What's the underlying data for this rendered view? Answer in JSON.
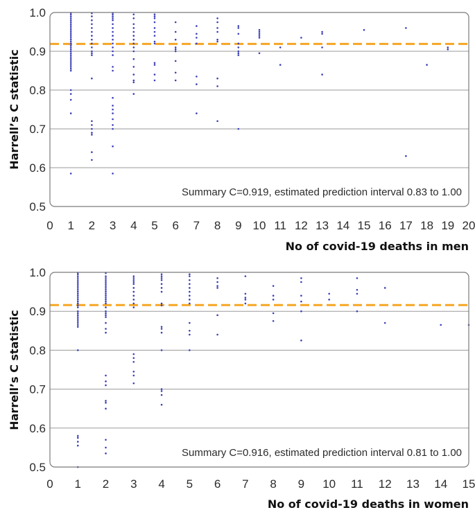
{
  "colors": {
    "points": "#3b3fb6",
    "summary_line": "#f5a623",
    "grid": "#9a9a9a",
    "frame": "#7a7a7a"
  },
  "chart_data": [
    {
      "type": "scatter",
      "xlabel": "No of covid-19 deaths in men",
      "ylabel": "Harrell’s C statistic",
      "xlim": [
        0,
        20
      ],
      "ylim": [
        0.5,
        1.0
      ],
      "x_ticks": [
        "0",
        "1",
        "2",
        "3",
        "4",
        "5",
        "6",
        "7",
        "8",
        "9",
        "10",
        "11",
        "12",
        "13",
        "14",
        "15",
        "16",
        "17",
        "18",
        "19",
        "20"
      ],
      "y_ticks": [
        "0.5",
        "0.6",
        "0.7",
        "0.8",
        "0.9",
        "1.0"
      ],
      "grid": "horizontal",
      "summary_c": 0.919,
      "annotation": "Summary C=0.919, estimated prediction interval 0.83 to 1.00",
      "points": [
        [
          1,
          0.999
        ],
        [
          1,
          0.995
        ],
        [
          1,
          0.99
        ],
        [
          1,
          0.985
        ],
        [
          1,
          0.98
        ],
        [
          1,
          0.975
        ],
        [
          1,
          0.97
        ],
        [
          1,
          0.965
        ],
        [
          1,
          0.96
        ],
        [
          1,
          0.955
        ],
        [
          1,
          0.95
        ],
        [
          1,
          0.945
        ],
        [
          1,
          0.94
        ],
        [
          1,
          0.935
        ],
        [
          1,
          0.93
        ],
        [
          1,
          0.925
        ],
        [
          1,
          0.92
        ],
        [
          1,
          0.915
        ],
        [
          1,
          0.91
        ],
        [
          1,
          0.905
        ],
        [
          1,
          0.9
        ],
        [
          1,
          0.895
        ],
        [
          1,
          0.89
        ],
        [
          1,
          0.885
        ],
        [
          1,
          0.88
        ],
        [
          1,
          0.875
        ],
        [
          1,
          0.87
        ],
        [
          1,
          0.865
        ],
        [
          1,
          0.86
        ],
        [
          1,
          0.855
        ],
        [
          1,
          0.85
        ],
        [
          1,
          0.8
        ],
        [
          1,
          0.79
        ],
        [
          1,
          0.775
        ],
        [
          1,
          0.74
        ],
        [
          1,
          0.585
        ],
        [
          2,
          0.998
        ],
        [
          2,
          0.99
        ],
        [
          2,
          0.98
        ],
        [
          2,
          0.97
        ],
        [
          2,
          0.96
        ],
        [
          2,
          0.95
        ],
        [
          2,
          0.94
        ],
        [
          2,
          0.93
        ],
        [
          2,
          0.92
        ],
        [
          2,
          0.91
        ],
        [
          2,
          0.9
        ],
        [
          2,
          0.895
        ],
        [
          2,
          0.89
        ],
        [
          2,
          0.83
        ],
        [
          2,
          0.72
        ],
        [
          2,
          0.71
        ],
        [
          2,
          0.7
        ],
        [
          2,
          0.69
        ],
        [
          2,
          0.685
        ],
        [
          2,
          0.64
        ],
        [
          2,
          0.62
        ],
        [
          3,
          0.999
        ],
        [
          3,
          0.995
        ],
        [
          3,
          0.99
        ],
        [
          3,
          0.985
        ],
        [
          3,
          0.98
        ],
        [
          3,
          0.97
        ],
        [
          3,
          0.96
        ],
        [
          3,
          0.95
        ],
        [
          3,
          0.94
        ],
        [
          3,
          0.93
        ],
        [
          3,
          0.92
        ],
        [
          3,
          0.91
        ],
        [
          3,
          0.9
        ],
        [
          3,
          0.89
        ],
        [
          3,
          0.86
        ],
        [
          3,
          0.85
        ],
        [
          3,
          0.78
        ],
        [
          3,
          0.76
        ],
        [
          3,
          0.75
        ],
        [
          3,
          0.74
        ],
        [
          3,
          0.725
        ],
        [
          3,
          0.71
        ],
        [
          3,
          0.7
        ],
        [
          3,
          0.655
        ],
        [
          3,
          0.585
        ],
        [
          4,
          0.995
        ],
        [
          4,
          0.985
        ],
        [
          4,
          0.97
        ],
        [
          4,
          0.96
        ],
        [
          4,
          0.95
        ],
        [
          4,
          0.94
        ],
        [
          4,
          0.93
        ],
        [
          4,
          0.92
        ],
        [
          4,
          0.91
        ],
        [
          4,
          0.9
        ],
        [
          4,
          0.88
        ],
        [
          4,
          0.86
        ],
        [
          4,
          0.84
        ],
        [
          4,
          0.825
        ],
        [
          4,
          0.82
        ],
        [
          4,
          0.79
        ],
        [
          5,
          0.995
        ],
        [
          5,
          0.99
        ],
        [
          5,
          0.985
        ],
        [
          5,
          0.975
        ],
        [
          5,
          0.96
        ],
        [
          5,
          0.95
        ],
        [
          5,
          0.94
        ],
        [
          5,
          0.925
        ],
        [
          5,
          0.92
        ],
        [
          5,
          0.87
        ],
        [
          5,
          0.865
        ],
        [
          5,
          0.84
        ],
        [
          5,
          0.825
        ],
        [
          6,
          0.975
        ],
        [
          6,
          0.95
        ],
        [
          6,
          0.93
        ],
        [
          6,
          0.91
        ],
        [
          6,
          0.905
        ],
        [
          6,
          0.9
        ],
        [
          6,
          0.875
        ],
        [
          6,
          0.845
        ],
        [
          6,
          0.825
        ],
        [
          7,
          0.965
        ],
        [
          7,
          0.945
        ],
        [
          7,
          0.935
        ],
        [
          7,
          0.92
        ],
        [
          7,
          0.835
        ],
        [
          7,
          0.815
        ],
        [
          7,
          0.74
        ],
        [
          8,
          0.985
        ],
        [
          8,
          0.975
        ],
        [
          8,
          0.96
        ],
        [
          8,
          0.95
        ],
        [
          8,
          0.93
        ],
        [
          8,
          0.925
        ],
        [
          8,
          0.83
        ],
        [
          8,
          0.81
        ],
        [
          8,
          0.72
        ],
        [
          9,
          0.965
        ],
        [
          9,
          0.96
        ],
        [
          9,
          0.945
        ],
        [
          9,
          0.92
        ],
        [
          9,
          0.91
        ],
        [
          9,
          0.9
        ],
        [
          9,
          0.895
        ],
        [
          9,
          0.89
        ],
        [
          9,
          0.7
        ],
        [
          10,
          0.955
        ],
        [
          10,
          0.95
        ],
        [
          10,
          0.945
        ],
        [
          10,
          0.94
        ],
        [
          10,
          0.935
        ],
        [
          10,
          0.895
        ],
        [
          11,
          0.91
        ],
        [
          11,
          0.865
        ],
        [
          12,
          0.935
        ],
        [
          13,
          0.95
        ],
        [
          13,
          0.945
        ],
        [
          13,
          0.91
        ],
        [
          13,
          0.84
        ],
        [
          15,
          0.955
        ],
        [
          17,
          0.96
        ],
        [
          17,
          0.63
        ],
        [
          18,
          0.865
        ],
        [
          19,
          0.91
        ],
        [
          19,
          0.905
        ]
      ]
    },
    {
      "type": "scatter",
      "xlabel": "No of covid-19 deaths in women",
      "ylabel": "Harrell’s C statistic",
      "xlim": [
        0,
        15
      ],
      "ylim": [
        0.5,
        1.0
      ],
      "x_ticks": [
        "0",
        "1",
        "2",
        "3",
        "4",
        "5",
        "6",
        "7",
        "8",
        "9",
        "10",
        "11",
        "12",
        "13",
        "14",
        "15"
      ],
      "y_ticks": [
        "0.5",
        "0.6",
        "0.7",
        "0.8",
        "0.9",
        "1.0"
      ],
      "grid": "horizontal",
      "summary_c": 0.916,
      "annotation": "Summary C=0.916, estimated prediction interval 0.81 to 1.00",
      "points": [
        [
          1,
          0.999
        ],
        [
          1,
          0.995
        ],
        [
          1,
          0.99
        ],
        [
          1,
          0.985
        ],
        [
          1,
          0.98
        ],
        [
          1,
          0.975
        ],
        [
          1,
          0.97
        ],
        [
          1,
          0.965
        ],
        [
          1,
          0.96
        ],
        [
          1,
          0.955
        ],
        [
          1,
          0.95
        ],
        [
          1,
          0.945
        ],
        [
          1,
          0.94
        ],
        [
          1,
          0.935
        ],
        [
          1,
          0.93
        ],
        [
          1,
          0.925
        ],
        [
          1,
          0.92
        ],
        [
          1,
          0.915
        ],
        [
          1,
          0.91
        ],
        [
          1,
          0.9
        ],
        [
          1,
          0.895
        ],
        [
          1,
          0.89
        ],
        [
          1,
          0.885
        ],
        [
          1,
          0.88
        ],
        [
          1,
          0.875
        ],
        [
          1,
          0.87
        ],
        [
          1,
          0.865
        ],
        [
          1,
          0.86
        ],
        [
          1,
          0.8
        ],
        [
          1,
          0.58
        ],
        [
          1,
          0.575
        ],
        [
          1,
          0.565
        ],
        [
          1,
          0.555
        ],
        [
          1,
          0.5
        ],
        [
          2,
          0.998
        ],
        [
          2,
          0.99
        ],
        [
          2,
          0.985
        ],
        [
          2,
          0.98
        ],
        [
          2,
          0.975
        ],
        [
          2,
          0.97
        ],
        [
          2,
          0.965
        ],
        [
          2,
          0.96
        ],
        [
          2,
          0.955
        ],
        [
          2,
          0.95
        ],
        [
          2,
          0.945
        ],
        [
          2,
          0.94
        ],
        [
          2,
          0.935
        ],
        [
          2,
          0.93
        ],
        [
          2,
          0.925
        ],
        [
          2,
          0.92
        ],
        [
          2,
          0.91
        ],
        [
          2,
          0.9
        ],
        [
          2,
          0.895
        ],
        [
          2,
          0.89
        ],
        [
          2,
          0.885
        ],
        [
          2,
          0.87
        ],
        [
          2,
          0.855
        ],
        [
          2,
          0.845
        ],
        [
          2,
          0.735
        ],
        [
          2,
          0.72
        ],
        [
          2,
          0.71
        ],
        [
          2,
          0.67
        ],
        [
          2,
          0.665
        ],
        [
          2,
          0.65
        ],
        [
          2,
          0.57
        ],
        [
          2,
          0.55
        ],
        [
          2,
          0.535
        ],
        [
          3,
          0.99
        ],
        [
          3,
          0.985
        ],
        [
          3,
          0.98
        ],
        [
          3,
          0.975
        ],
        [
          3,
          0.97
        ],
        [
          3,
          0.96
        ],
        [
          3,
          0.95
        ],
        [
          3,
          0.94
        ],
        [
          3,
          0.93
        ],
        [
          3,
          0.92
        ],
        [
          3,
          0.91
        ],
        [
          3,
          0.79
        ],
        [
          3,
          0.78
        ],
        [
          3,
          0.77
        ],
        [
          3,
          0.745
        ],
        [
          3,
          0.735
        ],
        [
          3,
          0.715
        ],
        [
          4,
          0.995
        ],
        [
          4,
          0.99
        ],
        [
          4,
          0.985
        ],
        [
          4,
          0.98
        ],
        [
          4,
          0.97
        ],
        [
          4,
          0.96
        ],
        [
          4,
          0.95
        ],
        [
          4,
          0.92
        ],
        [
          4,
          0.915
        ],
        [
          4,
          0.86
        ],
        [
          4,
          0.855
        ],
        [
          4,
          0.845
        ],
        [
          4,
          0.8
        ],
        [
          4,
          0.7
        ],
        [
          4,
          0.695
        ],
        [
          4,
          0.685
        ],
        [
          4,
          0.66
        ],
        [
          5,
          0.995
        ],
        [
          5,
          0.99
        ],
        [
          5,
          0.98
        ],
        [
          5,
          0.97
        ],
        [
          5,
          0.96
        ],
        [
          5,
          0.95
        ],
        [
          5,
          0.94
        ],
        [
          5,
          0.93
        ],
        [
          5,
          0.92
        ],
        [
          5,
          0.87
        ],
        [
          5,
          0.85
        ],
        [
          5,
          0.84
        ],
        [
          5,
          0.8
        ],
        [
          6,
          0.985
        ],
        [
          6,
          0.975
        ],
        [
          6,
          0.965
        ],
        [
          6,
          0.96
        ],
        [
          6,
          0.89
        ],
        [
          6,
          0.84
        ],
        [
          7,
          0.99
        ],
        [
          7,
          0.945
        ],
        [
          7,
          0.935
        ],
        [
          7,
          0.93
        ],
        [
          7,
          0.92
        ],
        [
          8,
          0.965
        ],
        [
          8,
          0.94
        ],
        [
          8,
          0.93
        ],
        [
          8,
          0.895
        ],
        [
          8,
          0.875
        ],
        [
          9,
          0.985
        ],
        [
          9,
          0.975
        ],
        [
          9,
          0.94
        ],
        [
          9,
          0.925
        ],
        [
          9,
          0.9
        ],
        [
          9,
          0.825
        ],
        [
          10,
          0.945
        ],
        [
          10,
          0.93
        ],
        [
          11,
          0.985
        ],
        [
          11,
          0.955
        ],
        [
          11,
          0.945
        ],
        [
          11,
          0.9
        ],
        [
          12,
          0.96
        ],
        [
          12,
          0.87
        ],
        [
          14,
          0.865
        ],
        [
          15,
          0.865
        ]
      ]
    }
  ]
}
